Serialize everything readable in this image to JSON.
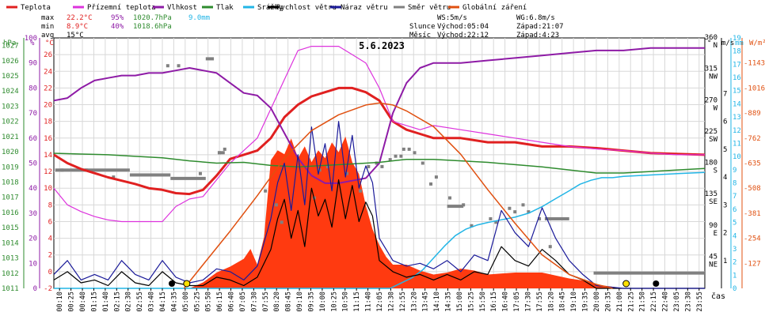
{
  "chart_data": {
    "type": "line",
    "title": "5.6.2023",
    "xlabel": "čas",
    "legend": [
      {
        "label": "Teplota",
        "color": "#e02020"
      },
      {
        "label": "Přízemní teplota",
        "color": "#dd33dd"
      },
      {
        "label": "Vlhkost",
        "color": "#8e1ba6"
      },
      {
        "label": "Tlak",
        "color": "#2e8b2e"
      },
      {
        "label": "Srážky",
        "color": "#22b5e6"
      },
      {
        "label": "Rychlost větru",
        "color": "#000000"
      },
      {
        "label": "Náraz větru",
        "color": "#1a1a99"
      },
      {
        "label": "Směr větru",
        "color": "#808080"
      },
      {
        "label": "Globální záření",
        "color": "#e05010"
      }
    ],
    "xlim": [
      0,
      24
    ],
    "x_ticks": [
      "00:10",
      "00:25",
      "00:40",
      "01:15",
      "01:40",
      "02:15",
      "02:30",
      "02:55",
      "03:40",
      "04:15",
      "04:35",
      "05:00",
      "05:25",
      "05:50",
      "06:15",
      "06:40",
      "07:05",
      "07:30",
      "07:55",
      "08:20",
      "08:45",
      "09:10",
      "09:35",
      "10:00",
      "10:25",
      "10:50",
      "11:15",
      "11:40",
      "12:05",
      "12:30",
      "12:55",
      "13:20",
      "13:45",
      "14:10",
      "14:35",
      "15:00",
      "15:25",
      "15:50",
      "16:15",
      "16:40",
      "17:05",
      "17:30",
      "17:55",
      "18:20",
      "18:45",
      "19:10",
      "19:35",
      "20:00",
      "20:35",
      "21:00",
      "21:25",
      "21:50",
      "22:15",
      "22:40",
      "23:05",
      "23:30",
      "23:55"
    ],
    "axes": {
      "pressure_hpa": {
        "ylim": [
          1011,
          1027.5
        ],
        "ticks": [
          1011,
          1012,
          1013,
          1014,
          1015,
          1016,
          1017,
          1018,
          1019,
          1020,
          1021,
          1022,
          1023,
          1024,
          1025,
          1026,
          1027
        ],
        "color": "#2e8b2e"
      },
      "humidity_pct": {
        "ylim": [
          0,
          100
        ],
        "ticks": [
          0,
          10,
          20,
          30,
          40,
          50,
          60,
          70,
          80,
          90,
          100
        ],
        "color": "#8e1ba6"
      },
      "temperature_c": {
        "ylim": [
          -2,
          28
        ],
        "ticks": [
          -2,
          0,
          2,
          4,
          6,
          8,
          10,
          12,
          14,
          16,
          18,
          20,
          22,
          24,
          26
        ],
        "color": "#e02020"
      },
      "direction_deg": {
        "ylim": [
          0,
          360
        ],
        "ticks": [
          45,
          90,
          135,
          180,
          225,
          270,
          315,
          360
        ],
        "labels": [
          "NE",
          "E",
          "SE",
          "S",
          "SW",
          "W",
          "NW",
          "N"
        ],
        "color": "#000000"
      },
      "wind_ms": {
        "ylim": [
          0,
          9
        ],
        "ticks": [
          1,
          2,
          3,
          4,
          5,
          6,
          7
        ],
        "color": "#000000"
      },
      "rain_mm": {
        "ylim": [
          0,
          19
        ],
        "ticks": [
          0,
          1,
          2,
          3,
          4,
          5,
          6,
          7,
          8,
          9,
          10,
          11,
          12,
          13,
          14,
          15,
          16,
          17,
          18,
          19
        ],
        "color": "#22b5e6"
      },
      "radiation_wm2": {
        "ylim": [
          0,
          1270
        ],
        "ticks": [
          127,
          254,
          381,
          508,
          635,
          762,
          889,
          1016,
          1143
        ],
        "color": "#e05010"
      }
    },
    "series": [
      {
        "name": "Teplota",
        "axis": "temperature_c",
        "color": "#e02020",
        "x": [
          0,
          0.5,
          1,
          1.5,
          2,
          2.5,
          3,
          3.5,
          4,
          4.5,
          5,
          5.5,
          6,
          6.5,
          7,
          7.5,
          8,
          8.5,
          9,
          9.5,
          10,
          10.5,
          11,
          11.5,
          12,
          12.5,
          13,
          13.5,
          14,
          15,
          16,
          17,
          18,
          19,
          20,
          21,
          22,
          23,
          24
        ],
        "y": [
          14,
          13,
          12.3,
          11.8,
          11.3,
          10.9,
          10.5,
          10,
          9.8,
          9.4,
          9.3,
          9.8,
          11.5,
          13.5,
          14,
          14.5,
          16,
          18.5,
          20,
          21,
          21.5,
          22,
          22,
          21.5,
          20.5,
          18,
          17,
          16.5,
          16,
          16,
          15.5,
          15.5,
          15,
          15,
          14.8,
          14.5,
          14.2,
          14.1,
          14
        ]
      },
      {
        "name": "Přízemní teplota",
        "axis": "temperature_c",
        "color": "#dd33dd",
        "x": [
          0,
          0.5,
          1,
          1.5,
          2,
          2.5,
          3,
          3.5,
          4,
          4.5,
          5,
          5.5,
          6,
          6.5,
          7,
          7.5,
          8,
          8.5,
          9,
          9.5,
          10,
          10.5,
          11,
          11.5,
          12,
          12.5,
          13,
          13.5,
          14,
          15,
          16,
          17,
          18,
          19,
          20,
          21,
          22,
          23,
          24
        ],
        "y": [
          10,
          8,
          7.2,
          6.6,
          6.2,
          6,
          6,
          6,
          6,
          7.8,
          8.7,
          9,
          11,
          13,
          14.5,
          16,
          19.5,
          23,
          26.5,
          27,
          27,
          27,
          26,
          25,
          22,
          18,
          17.5,
          17,
          17.5,
          17,
          16.5,
          16,
          15.5,
          15,
          14.7,
          14.5,
          14.2,
          14,
          14
        ]
      },
      {
        "name": "Vlhkost",
        "axis": "humidity_pct",
        "color": "#8e1ba6",
        "x": [
          0,
          0.5,
          1,
          1.5,
          2,
          2.5,
          3,
          3.5,
          4,
          4.5,
          5,
          5.5,
          6,
          6.5,
          7,
          7.5,
          8,
          8.5,
          9,
          9.5,
          10,
          10.5,
          11,
          11.5,
          12,
          12.5,
          13,
          13.5,
          14,
          15,
          16,
          17,
          18,
          19,
          20,
          21,
          22,
          23,
          24
        ],
        "y": [
          75,
          76,
          80,
          83,
          84,
          85,
          85,
          86,
          86,
          87,
          88,
          87,
          86,
          82,
          78,
          77,
          72,
          62,
          52,
          45,
          42,
          42,
          43,
          44,
          50,
          70,
          82,
          88,
          90,
          90,
          91,
          92,
          93,
          94,
          95,
          95,
          96,
          96,
          96
        ]
      },
      {
        "name": "Tlak",
        "axis": "pressure_hpa",
        "color": "#2e8b2e",
        "x": [
          0,
          1,
          2,
          3,
          4,
          5,
          6,
          7,
          8,
          9,
          10,
          11,
          12,
          13,
          14,
          15,
          16,
          17,
          18,
          19,
          20,
          21,
          22,
          23,
          24
        ],
        "y": [
          1019.9,
          1019.85,
          1019.8,
          1019.7,
          1019.6,
          1019.4,
          1019.25,
          1019.3,
          1019.1,
          1019.0,
          1019.1,
          1019.2,
          1019.3,
          1019.5,
          1019.5,
          1019.4,
          1019.3,
          1019.15,
          1019.0,
          1018.8,
          1018.6,
          1018.6,
          1018.7,
          1018.8,
          1018.9
        ]
      },
      {
        "name": "Srážky",
        "axis": "rain_mm",
        "color": "#22b5e6",
        "x": [
          0,
          12.4,
          12.8,
          13.2,
          13.6,
          14,
          14.4,
          14.8,
          15.2,
          15.6,
          16,
          16.5,
          17,
          17.5,
          18,
          18.5,
          19,
          19.4,
          19.8,
          20.2,
          20.6,
          21,
          22,
          23,
          24
        ],
        "y": [
          0,
          0,
          0.4,
          0.8,
          1.4,
          2.3,
          3.2,
          4,
          4.5,
          4.8,
          5,
          5.2,
          5.4,
          5.7,
          6.2,
          6.8,
          7.4,
          7.9,
          8.2,
          8.4,
          8.4,
          8.5,
          8.6,
          8.7,
          8.8
        ]
      },
      {
        "name": "Rychlost větru",
        "axis": "wind_ms",
        "color": "#000000",
        "x": [
          0,
          0.5,
          1,
          1.5,
          2,
          2.5,
          3,
          3.5,
          4,
          4.5,
          5,
          5.5,
          6,
          6.5,
          7,
          7.5,
          8,
          8.25,
          8.5,
          8.75,
          9,
          9.25,
          9.5,
          9.75,
          10,
          10.25,
          10.5,
          10.75,
          11,
          11.25,
          11.5,
          11.75,
          12,
          12.5,
          13,
          13.5,
          14,
          14.5,
          15,
          15.5,
          16,
          16.5,
          17,
          17.5,
          18,
          18.5,
          19,
          19.5,
          20,
          21,
          22,
          23,
          24
        ],
        "y": [
          0.3,
          0.6,
          0.2,
          0.3,
          0.1,
          0.6,
          0.2,
          0.1,
          0.6,
          0.2,
          0.1,
          0.1,
          0.4,
          0.3,
          0.1,
          0.4,
          1.4,
          2.5,
          3.2,
          1.8,
          2.8,
          1.5,
          3.6,
          2.6,
          3.2,
          2.2,
          3.9,
          2.5,
          3.7,
          2.4,
          3.1,
          2.6,
          1,
          0.6,
          0.4,
          0.5,
          0.3,
          0.5,
          0.3,
          0.6,
          0.5,
          1.5,
          1,
          0.8,
          1.4,
          1,
          0.5,
          0.3,
          0,
          0,
          0,
          0,
          0
        ]
      },
      {
        "name": "Náraz větru",
        "axis": "wind_ms",
        "color": "#1a1a99",
        "x": [
          0,
          0.5,
          1,
          1.5,
          2,
          2.5,
          3,
          3.5,
          4,
          4.5,
          5,
          5.5,
          6,
          6.5,
          7,
          7.5,
          8,
          8.25,
          8.5,
          8.75,
          9,
          9.25,
          9.5,
          9.75,
          10,
          10.25,
          10.5,
          10.75,
          11,
          11.25,
          11.5,
          11.75,
          12,
          12.5,
          13,
          13.5,
          14,
          14.5,
          15,
          15.5,
          16,
          16.5,
          17,
          17.5,
          18,
          18.5,
          19,
          19.5,
          20,
          21,
          22,
          23,
          24
        ],
        "y": [
          0.5,
          1,
          0.3,
          0.5,
          0.3,
          1,
          0.5,
          0.3,
          1,
          0.4,
          0.2,
          0.3,
          0.7,
          0.6,
          0.3,
          0.8,
          2.5,
          3.8,
          4.5,
          2.8,
          4.8,
          3,
          5.8,
          4.1,
          5.2,
          3.5,
          6,
          4,
          5.5,
          3.6,
          4.4,
          3.8,
          1.8,
          1,
          0.8,
          0.9,
          0.7,
          1,
          0.6,
          1.2,
          1,
          2.8,
          2,
          1.5,
          2.9,
          1.8,
          1,
          0.5,
          0.1,
          0,
          0,
          0,
          0
        ]
      },
      {
        "name": "Globální záření",
        "axis": "radiation_wm2",
        "color": "#e05010",
        "x": [
          4.8,
          5.5,
          6.5,
          7.5,
          8.5,
          9.5,
          10.5,
          11.5,
          12,
          12.5,
          13,
          14,
          15,
          16,
          17,
          18,
          19,
          20,
          20.6
        ],
        "y": [
          0,
          120,
          290,
          470,
          660,
          800,
          880,
          930,
          940,
          930,
          900,
          820,
          680,
          500,
          330,
          170,
          70,
          20,
          0
        ]
      },
      {
        "name": "Globální záření (měřené)",
        "axis": "radiation_wm2",
        "color": "#ff3a10",
        "kind": "area",
        "x": [
          0,
          5,
          5.5,
          6,
          6.5,
          7,
          7.25,
          7.5,
          7.75,
          8,
          8.25,
          8.5,
          8.75,
          9,
          9.25,
          9.5,
          9.75,
          10,
          10.25,
          10.5,
          10.75,
          11,
          11.25,
          11.5,
          11.75,
          12,
          12.25,
          12.5,
          13,
          13.5,
          14,
          14.5,
          15,
          15.5,
          16,
          17,
          18,
          19,
          19.5,
          20,
          20.5,
          21,
          24
        ],
        "y": [
          0,
          0,
          30,
          80,
          110,
          150,
          200,
          120,
          260,
          650,
          700,
          680,
          760,
          660,
          720,
          640,
          700,
          660,
          740,
          690,
          770,
          640,
          580,
          420,
          300,
          220,
          160,
          120,
          120,
          90,
          70,
          80,
          100,
          90,
          70,
          80,
          80,
          50,
          40,
          20,
          10,
          0,
          0
        ]
      }
    ],
    "direction_points": {
      "x": [
        0.3,
        1.2,
        2.2,
        4.2,
        4.6,
        5.4,
        6.1,
        6.3,
        7.8,
        8.2,
        8.4,
        9.6,
        9.8,
        10.1,
        10.8,
        11.3,
        11.6,
        11.9,
        12.1,
        12.4,
        12.6,
        12.8,
        12.9,
        13.1,
        13.3,
        13.6,
        13.9,
        14.1,
        14.6,
        15.1,
        15.4,
        16.1,
        16.3,
        16.8,
        17.0,
        17.3,
        17.5,
        17.9,
        18.3
      ],
      "y": [
        170,
        170,
        160,
        320,
        320,
        165,
        195,
        200,
        140,
        120,
        95,
        130,
        170,
        175,
        165,
        140,
        175,
        180,
        175,
        185,
        190,
        190,
        200,
        200,
        195,
        180,
        150,
        160,
        130,
        120,
        90,
        100,
        95,
        115,
        110,
        120,
        110,
        100,
        60
      ]
    },
    "direction_bars": [
      {
        "x0": 0.05,
        "x1": 2.8,
        "y": 170
      },
      {
        "x0": 2.8,
        "x1": 4.3,
        "y": 163
      },
      {
        "x0": 4.3,
        "x1": 5.6,
        "y": 158
      },
      {
        "x0": 5.6,
        "x1": 5.9,
        "y": 330
      },
      {
        "x0": 6.05,
        "x1": 6.3,
        "y": 195
      },
      {
        "x0": 14.5,
        "x1": 15.1,
        "y": 118
      },
      {
        "x0": 18.1,
        "x1": 19.0,
        "y": 100
      },
      {
        "x0": 19.9,
        "x1": 24.0,
        "y": 22
      }
    ],
    "markers": [
      {
        "x": 4.35,
        "y": 5,
        "kind": "moon"
      },
      {
        "x": 4.9,
        "y": 5,
        "kind": "sun"
      },
      {
        "x": 21.1,
        "y": 5,
        "kind": "sun"
      },
      {
        "x": 22.2,
        "y": 5,
        "kind": "moon"
      }
    ]
  },
  "stats": {
    "max": {
      "label": "max",
      "temp": "22.2°C",
      "hum": "95%",
      "press": "1020.7hPa",
      "rain": "9.0mm"
    },
    "min": {
      "label": "min",
      "temp": "8.9°C",
      "hum": "40%",
      "press": "1018.6hPa"
    },
    "avg": {
      "label": "avg",
      "temp": "15°C"
    }
  },
  "astro": {
    "ws": "WS:5m/s",
    "wg": "WG:6.8m/s",
    "sun": {
      "label": "Slunce",
      "rise": "Východ:05:04",
      "set": "Západ:21:07"
    },
    "moon": {
      "label": "Měsíc",
      "rise": "Východ:22:12",
      "set": "Západ:4:23"
    }
  },
  "units": {
    "hpa": "hPa",
    "pct": "%",
    "degc": "°C",
    "deg": "°",
    "ms": "m/s",
    "mm": "mm",
    "wm2": "W/m²"
  }
}
